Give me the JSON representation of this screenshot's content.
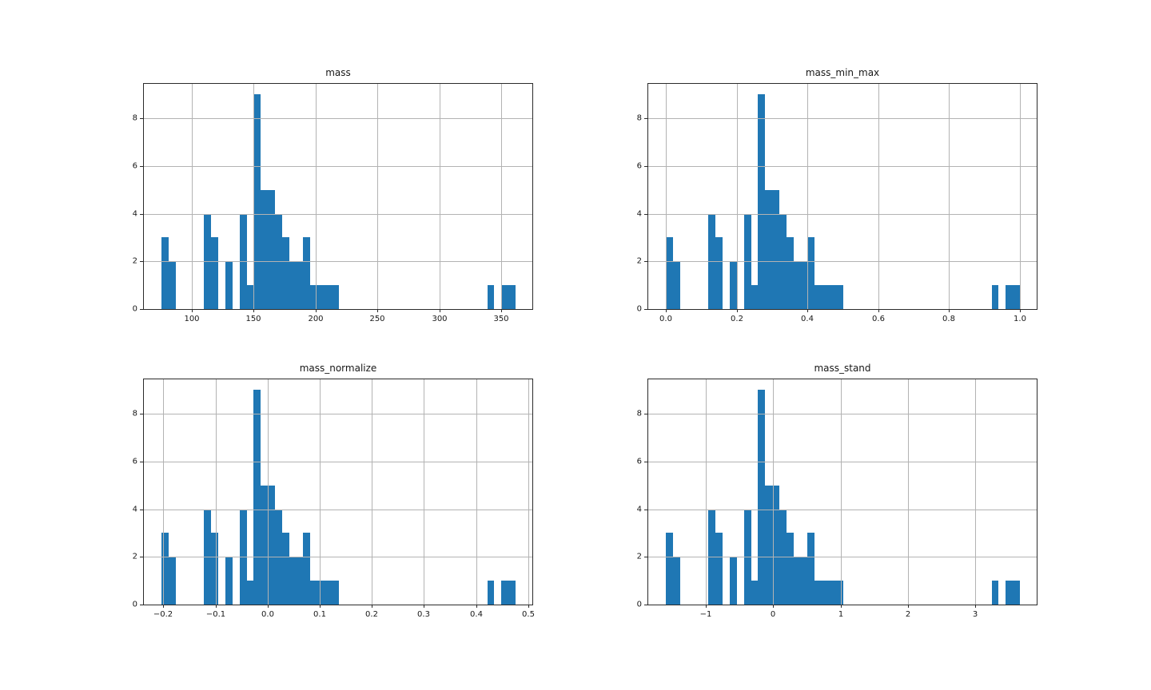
{
  "figure": {
    "kind": "matplotlib-style histogram grid",
    "rows": 2,
    "cols": 2,
    "background": "#ffffff"
  },
  "style": {
    "bar_color": "#1f77b4",
    "grid_color": "#b3b3b3",
    "spine_color": "#2b2b2b",
    "text_color": "#171717",
    "grid_above_bars": true
  },
  "chart_data": [
    {
      "type": "bar",
      "subtype": "histogram",
      "title": "mass",
      "n_samples": 59,
      "n_bins": 50,
      "bin_start": 75.7,
      "bin_width": 5.716,
      "bin_counts": [
        3,
        2,
        0,
        0,
        0,
        0,
        4,
        3,
        0,
        2,
        0,
        4,
        1,
        9,
        5,
        5,
        4,
        3,
        2,
        2,
        3,
        1,
        1,
        1,
        1,
        0,
        0,
        0,
        0,
        0,
        0,
        0,
        0,
        0,
        0,
        0,
        0,
        0,
        0,
        0,
        0,
        0,
        0,
        0,
        0,
        0,
        1,
        0,
        1,
        1
      ],
      "xlim": [
        61.31,
        375.05
      ],
      "ylim": [
        0,
        9.45
      ],
      "grid": true,
      "x_ticks": [
        {
          "value": 100,
          "label": "100"
        },
        {
          "value": 150,
          "label": "150"
        },
        {
          "value": 200,
          "label": "200"
        },
        {
          "value": 250,
          "label": "250"
        },
        {
          "value": 300,
          "label": "300"
        },
        {
          "value": 350,
          "label": "350"
        }
      ],
      "y_ticks": [
        {
          "value": 0,
          "label": "0"
        },
        {
          "value": 2,
          "label": "2"
        },
        {
          "value": 4,
          "label": "4"
        },
        {
          "value": 6,
          "label": "6"
        },
        {
          "value": 8,
          "label": "8"
        }
      ]
    },
    {
      "type": "bar",
      "subtype": "histogram",
      "title": "mass_min_max",
      "n_samples": 59,
      "n_bins": 50,
      "bin_start": 0.0,
      "bin_width": 0.02,
      "bin_counts": [
        3,
        2,
        0,
        0,
        0,
        0,
        4,
        3,
        0,
        2,
        0,
        4,
        1,
        9,
        5,
        5,
        4,
        3,
        2,
        2,
        3,
        1,
        1,
        1,
        1,
        0,
        0,
        0,
        0,
        0,
        0,
        0,
        0,
        0,
        0,
        0,
        0,
        0,
        0,
        0,
        0,
        0,
        0,
        0,
        0,
        0,
        1,
        0,
        1,
        1
      ],
      "xlim": [
        -0.0503,
        1.0474
      ],
      "ylim": [
        0,
        9.45
      ],
      "grid": true,
      "x_ticks": [
        {
          "value": 0.0,
          "label": "0.0"
        },
        {
          "value": 0.2,
          "label": "0.2"
        },
        {
          "value": 0.4,
          "label": "0.4"
        },
        {
          "value": 0.6,
          "label": "0.6"
        },
        {
          "value": 0.8,
          "label": "0.8"
        },
        {
          "value": 1.0,
          "label": "1.0"
        }
      ],
      "y_ticks": [
        {
          "value": 0,
          "label": "0"
        },
        {
          "value": 2,
          "label": "2"
        },
        {
          "value": 4,
          "label": "4"
        },
        {
          "value": 6,
          "label": "6"
        },
        {
          "value": 8,
          "label": "8"
        }
      ]
    },
    {
      "type": "bar",
      "subtype": "histogram",
      "title": "mass_normalize",
      "n_samples": 59,
      "n_bins": 50,
      "bin_start": -0.2031,
      "bin_width": 0.01358,
      "bin_counts": [
        3,
        2,
        0,
        0,
        0,
        0,
        4,
        3,
        0,
        2,
        0,
        4,
        1,
        9,
        5,
        5,
        4,
        3,
        2,
        2,
        3,
        1,
        1,
        1,
        1,
        0,
        0,
        0,
        0,
        0,
        0,
        0,
        0,
        0,
        0,
        0,
        0,
        0,
        0,
        0,
        0,
        0,
        0,
        0,
        0,
        0,
        1,
        0,
        1,
        1
      ],
      "xlim": [
        -0.2373,
        0.5081
      ],
      "ylim": [
        0,
        9.45
      ],
      "grid": true,
      "x_ticks": [
        {
          "value": -0.2,
          "label": "−0.2"
        },
        {
          "value": -0.1,
          "label": "−0.1"
        },
        {
          "value": 0.0,
          "label": "0.0"
        },
        {
          "value": 0.1,
          "label": "0.1"
        },
        {
          "value": 0.2,
          "label": "0.2"
        },
        {
          "value": 0.3,
          "label": "0.3"
        },
        {
          "value": 0.4,
          "label": "0.4"
        },
        {
          "value": 0.5,
          "label": "0.5"
        }
      ],
      "y_ticks": [
        {
          "value": 0,
          "label": "0"
        },
        {
          "value": 2,
          "label": "2"
        },
        {
          "value": 4,
          "label": "4"
        },
        {
          "value": 6,
          "label": "6"
        },
        {
          "value": 8,
          "label": "8"
        }
      ]
    },
    {
      "type": "bar",
      "subtype": "histogram",
      "title": "mass_stand",
      "n_samples": 59,
      "n_bins": 50,
      "bin_start": -1.5877,
      "bin_width": 0.104978,
      "bin_counts": [
        3,
        2,
        0,
        0,
        0,
        0,
        4,
        3,
        0,
        2,
        0,
        4,
        1,
        9,
        5,
        5,
        4,
        3,
        2,
        2,
        3,
        1,
        1,
        1,
        1,
        0,
        0,
        0,
        0,
        0,
        0,
        0,
        0,
        0,
        0,
        0,
        0,
        0,
        0,
        0,
        0,
        0,
        0,
        0,
        0,
        0,
        1,
        0,
        1,
        1
      ],
      "xlim": [
        -1.8519,
        3.91
      ],
      "ylim": [
        0,
        9.45
      ],
      "grid": true,
      "x_ticks": [
        {
          "value": -1,
          "label": "−1"
        },
        {
          "value": 0,
          "label": "0"
        },
        {
          "value": 1,
          "label": "1"
        },
        {
          "value": 2,
          "label": "2"
        },
        {
          "value": 3,
          "label": "3"
        }
      ],
      "y_ticks": [
        {
          "value": 0,
          "label": "0"
        },
        {
          "value": 2,
          "label": "2"
        },
        {
          "value": 4,
          "label": "4"
        },
        {
          "value": 6,
          "label": "6"
        },
        {
          "value": 8,
          "label": "8"
        }
      ]
    }
  ]
}
